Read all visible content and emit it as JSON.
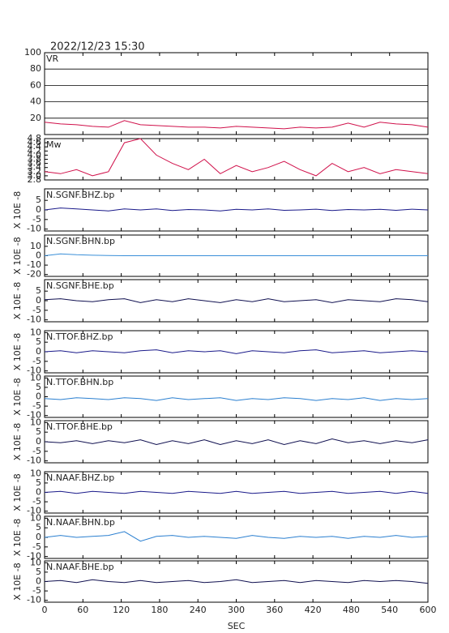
{
  "title": "2022/12/23 15:30",
  "chart_data": [
    {
      "type": "line",
      "label": "VR",
      "x": [
        0,
        25,
        50,
        75,
        100,
        125,
        150,
        175,
        200,
        225,
        250,
        275,
        300,
        325,
        350,
        375,
        400,
        425,
        450,
        475,
        500,
        525,
        550,
        575,
        600
      ],
      "xlim": [
        0,
        600
      ],
      "xticks": [
        0,
        60,
        120,
        180,
        240,
        300,
        360,
        420,
        480,
        540,
        600
      ],
      "ylim": [
        0,
        100
      ],
      "yticks": [
        20,
        40,
        60,
        80,
        100
      ],
      "grid": true,
      "series": [
        {
          "color": "#d0104a",
          "values": [
            15,
            13,
            12,
            10,
            9,
            17,
            12,
            11,
            10,
            9,
            9,
            8,
            10,
            9,
            8,
            7,
            9,
            8,
            9,
            14,
            9,
            15,
            13,
            12,
            9
          ]
        }
      ]
    },
    {
      "type": "line",
      "label": "Mw",
      "x": [
        0,
        25,
        50,
        75,
        100,
        125,
        150,
        175,
        200,
        225,
        250,
        275,
        300,
        325,
        350,
        375,
        400,
        425,
        450,
        475,
        500,
        525,
        550,
        575,
        600
      ],
      "xlim": [
        0,
        600
      ],
      "xticks": [
        0,
        60,
        120,
        180,
        240,
        300,
        360,
        420,
        480,
        540,
        600
      ],
      "ylim": [
        2.8,
        4.8
      ],
      "yticks": [
        2.8,
        {
          "value": 3,
          "label": "3.0"
        },
        3.2,
        3.4,
        3.6,
        3.8,
        {
          "value": 4,
          "label": "4.0"
        },
        4.2,
        4.4,
        4.6,
        4.8
      ],
      "grid": false,
      "series": [
        {
          "color": "#d0104a",
          "values": [
            3.2,
            3.1,
            3.3,
            3.0,
            3.2,
            4.6,
            4.8,
            4.0,
            3.6,
            3.3,
            3.8,
            3.1,
            3.5,
            3.2,
            3.4,
            3.7,
            3.3,
            3.0,
            3.6,
            3.2,
            3.4,
            3.1,
            3.3,
            3.2,
            3.1
          ]
        }
      ]
    },
    {
      "type": "line",
      "label": "N.SGNF.BHZ.bp",
      "ylabel": "X 10E -8",
      "x": [
        0,
        25,
        50,
        75,
        100,
        125,
        150,
        175,
        200,
        225,
        250,
        275,
        300,
        325,
        350,
        375,
        400,
        425,
        450,
        475,
        500,
        525,
        550,
        575,
        600
      ],
      "xlim": [
        0,
        600
      ],
      "xticks": [
        0,
        60,
        120,
        180,
        240,
        300,
        360,
        420,
        480,
        540,
        600
      ],
      "ylim": [
        -11,
        11
      ],
      "yticks": [
        -10,
        -5,
        0,
        5
      ],
      "grid": false,
      "series": [
        {
          "color": "#1a1a8a",
          "values": [
            0,
            1,
            0.5,
            0,
            -0.5,
            0.5,
            0,
            0.5,
            -0.3,
            0.2,
            0,
            -0.5,
            0.3,
            0,
            0.5,
            -0.2,
            0,
            0.4,
            -0.3,
            0.2,
            0,
            0.3,
            -0.2,
            0.4,
            0
          ]
        }
      ]
    },
    {
      "type": "line",
      "label": "N.SGNF.BHN.bp",
      "ylabel": "X 10E -8",
      "x": [
        0,
        25,
        50,
        75,
        100,
        125,
        150,
        175,
        200,
        225,
        250,
        275,
        300,
        325,
        350,
        375,
        400,
        425,
        450,
        475,
        500,
        525,
        550,
        575,
        600
      ],
      "xlim": [
        0,
        600
      ],
      "xticks": [
        0,
        60,
        120,
        180,
        240,
        300,
        360,
        420,
        480,
        540,
        600
      ],
      "ylim": [
        -22,
        22
      ],
      "yticks": [
        -20,
        -10,
        0,
        10
      ],
      "grid": false,
      "series": [
        {
          "color": "#3a8fd8",
          "values": [
            0,
            2,
            1,
            0.5,
            0.3,
            0,
            0,
            0,
            0,
            0,
            0,
            0,
            0,
            0,
            0,
            0,
            0,
            0,
            0,
            0,
            0,
            0,
            0,
            0,
            0
          ]
        }
      ]
    },
    {
      "type": "line",
      "label": "N.SGNF.BHE.bp",
      "ylabel": "X 10E -8",
      "x": [
        0,
        25,
        50,
        75,
        100,
        125,
        150,
        175,
        200,
        225,
        250,
        275,
        300,
        325,
        350,
        375,
        400,
        425,
        450,
        475,
        500,
        525,
        550,
        575,
        600
      ],
      "xlim": [
        0,
        600
      ],
      "xticks": [
        0,
        60,
        120,
        180,
        240,
        300,
        360,
        420,
        480,
        540,
        600
      ],
      "ylim": [
        -11,
        11
      ],
      "yticks": [
        -10,
        -5,
        0,
        5
      ],
      "grid": false,
      "series": [
        {
          "color": "#101050",
          "values": [
            0.5,
            1,
            0,
            -0.5,
            0.5,
            1,
            -1,
            0.5,
            -0.5,
            1,
            0,
            -1,
            0.5,
            -0.5,
            1,
            -0.5,
            0,
            0.5,
            -1,
            0.5,
            0,
            -0.5,
            1,
            0.5,
            -0.5
          ]
        }
      ]
    },
    {
      "type": "line",
      "label": "N.TTOF.BHZ.bp",
      "ylabel": "X 10E -8",
      "x": [
        0,
        25,
        50,
        75,
        100,
        125,
        150,
        175,
        200,
        225,
        250,
        275,
        300,
        325,
        350,
        375,
        400,
        425,
        450,
        475,
        500,
        525,
        550,
        575,
        600
      ],
      "xlim": [
        0,
        600
      ],
      "xticks": [
        0,
        60,
        120,
        180,
        240,
        300,
        360,
        420,
        480,
        540,
        600
      ],
      "ylim": [
        -11,
        11
      ],
      "yticks": [
        -10,
        -5,
        0,
        5,
        10
      ],
      "grid": false,
      "series": [
        {
          "color": "#1a1a8a",
          "values": [
            0,
            0.5,
            -0.5,
            0.5,
            0,
            -0.5,
            0.5,
            1,
            -0.5,
            0.5,
            0,
            0.5,
            -1,
            0.5,
            0,
            -0.5,
            0.5,
            1,
            -0.5,
            0,
            0.5,
            -0.5,
            0,
            0.5,
            0
          ]
        }
      ]
    },
    {
      "type": "line",
      "label": "N.TTOF.BHN.bp",
      "ylabel": "X 10E -8",
      "x": [
        0,
        25,
        50,
        75,
        100,
        125,
        150,
        175,
        200,
        225,
        250,
        275,
        300,
        325,
        350,
        375,
        400,
        425,
        450,
        475,
        500,
        525,
        550,
        575,
        600
      ],
      "xlim": [
        0,
        600
      ],
      "xticks": [
        0,
        60,
        120,
        180,
        240,
        300,
        360,
        420,
        480,
        540,
        600
      ],
      "ylim": [
        -11,
        11
      ],
      "yticks": [
        -10,
        -5,
        0,
        5,
        10
      ],
      "grid": false,
      "series": [
        {
          "color": "#2a7fd0",
          "values": [
            -1,
            -1.5,
            -0.5,
            -1,
            -1.5,
            -0.5,
            -1,
            -2,
            -0.5,
            -1.5,
            -1,
            -0.5,
            -2,
            -1,
            -1.5,
            -0.5,
            -1,
            -2,
            -1,
            -1.5,
            -0.5,
            -2,
            -1,
            -1.5,
            -1
          ]
        }
      ]
    },
    {
      "type": "line",
      "label": "N.TTOF.BHE.bp",
      "ylabel": "X 10E -8",
      "x": [
        0,
        25,
        50,
        75,
        100,
        125,
        150,
        175,
        200,
        225,
        250,
        275,
        300,
        325,
        350,
        375,
        400,
        425,
        450,
        475,
        500,
        525,
        550,
        575,
        600
      ],
      "xlim": [
        0,
        600
      ],
      "xticks": [
        0,
        60,
        120,
        180,
        240,
        300,
        360,
        420,
        480,
        540,
        600
      ],
      "ylim": [
        -11,
        11
      ],
      "yticks": [
        -10,
        -5,
        0,
        5,
        10
      ],
      "grid": false,
      "series": [
        {
          "color": "#101050",
          "values": [
            0,
            -0.5,
            0.5,
            -1,
            0.5,
            -0.5,
            1,
            -1.5,
            0.5,
            -1,
            1,
            -1.5,
            0.5,
            -1,
            1,
            -1.5,
            0.5,
            -1,
            1.5,
            -0.5,
            0.5,
            -1,
            0.5,
            -0.5,
            1
          ]
        }
      ]
    },
    {
      "type": "line",
      "label": "N.NAAF.BHZ.bp",
      "ylabel": "X 10E -8",
      "x": [
        0,
        25,
        50,
        75,
        100,
        125,
        150,
        175,
        200,
        225,
        250,
        275,
        300,
        325,
        350,
        375,
        400,
        425,
        450,
        475,
        500,
        525,
        550,
        575,
        600
      ],
      "xlim": [
        0,
        600
      ],
      "xticks": [
        0,
        60,
        120,
        180,
        240,
        300,
        360,
        420,
        480,
        540,
        600
      ],
      "ylim": [
        -11,
        11
      ],
      "yticks": [
        -10,
        -5,
        0,
        5,
        10
      ],
      "grid": false,
      "series": [
        {
          "color": "#1a1a8a",
          "values": [
            0,
            0.5,
            -0.5,
            0.5,
            0,
            -0.5,
            0.5,
            0,
            -0.5,
            0.5,
            0,
            -0.5,
            0.5,
            -0.5,
            0,
            0.5,
            -0.5,
            0,
            0.5,
            -0.5,
            0,
            0.5,
            -0.5,
            0.5,
            -0.5
          ]
        }
      ]
    },
    {
      "type": "line",
      "label": "N.NAAF.BHN.bp",
      "ylabel": "X 10E -8",
      "x": [
        0,
        25,
        50,
        75,
        100,
        125,
        150,
        175,
        200,
        225,
        250,
        275,
        300,
        325,
        350,
        375,
        400,
        425,
        450,
        475,
        500,
        525,
        550,
        575,
        600
      ],
      "xlim": [
        0,
        600
      ],
      "xticks": [
        0,
        60,
        120,
        180,
        240,
        300,
        360,
        420,
        480,
        540,
        600
      ],
      "ylim": [
        -11,
        11
      ],
      "yticks": [
        -10,
        -5,
        0,
        5,
        10
      ],
      "grid": false,
      "series": [
        {
          "color": "#2a7fd0",
          "values": [
            0,
            1,
            0,
            0.5,
            1,
            3,
            -2,
            0.5,
            1,
            0,
            0.5,
            0,
            -0.5,
            1,
            0,
            -0.5,
            0.5,
            0,
            0.5,
            -0.5,
            0.5,
            0,
            1,
            0,
            0.5
          ]
        }
      ]
    },
    {
      "type": "line",
      "label": "N.NAAF.BHE.bp",
      "ylabel": "X 10E -8",
      "xlabel": "SEC",
      "x": [
        0,
        25,
        50,
        75,
        100,
        125,
        150,
        175,
        200,
        225,
        250,
        275,
        300,
        325,
        350,
        375,
        400,
        425,
        450,
        475,
        500,
        525,
        550,
        575,
        600
      ],
      "xlim": [
        0,
        600
      ],
      "xticks": [
        0,
        60,
        120,
        180,
        240,
        300,
        360,
        420,
        480,
        540,
        600
      ],
      "ylim": [
        -11,
        11
      ],
      "yticks": [
        -10,
        -5,
        0,
        5,
        10
      ],
      "grid": false,
      "series": [
        {
          "color": "#101050",
          "values": [
            0,
            0.5,
            -0.5,
            1,
            0,
            -0.5,
            0.5,
            -0.5,
            0,
            0.5,
            -0.5,
            0,
            1,
            -0.5,
            0,
            0.5,
            -0.5,
            0.5,
            0,
            -0.5,
            0.5,
            0,
            0.5,
            0,
            -1
          ]
        }
      ]
    }
  ]
}
